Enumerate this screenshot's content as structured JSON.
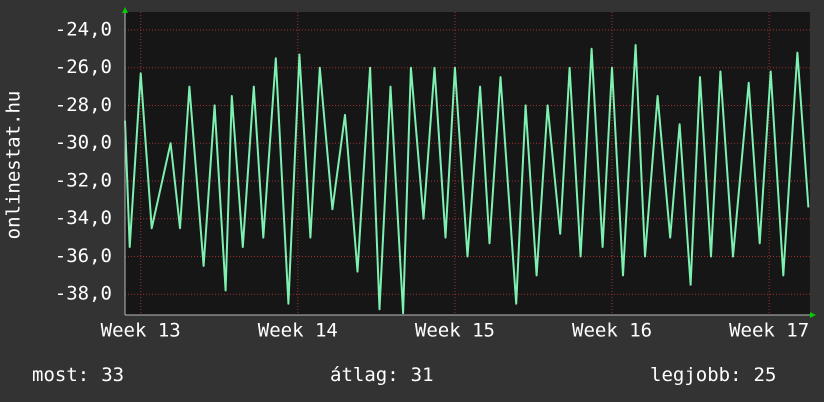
{
  "chart_data": {
    "type": "line",
    "ylabel": "onlinestat.hu",
    "x": [
      12.9,
      12.93,
      13.0,
      13.07,
      13.19,
      13.25,
      13.31,
      13.4,
      13.47,
      13.54,
      13.58,
      13.65,
      13.72,
      13.78,
      13.86,
      13.94,
      14.01,
      14.08,
      14.14,
      14.22,
      14.3,
      14.38,
      14.46,
      14.52,
      14.59,
      14.67,
      14.72,
      14.8,
      14.87,
      14.94,
      15.0,
      15.08,
      15.16,
      15.22,
      15.29,
      15.39,
      15.45,
      15.52,
      15.59,
      15.67,
      15.73,
      15.8,
      15.87,
      15.94,
      16.0,
      16.07,
      16.15,
      16.21,
      16.29,
      16.37,
      16.43,
      16.5,
      16.56,
      16.63,
      16.69,
      16.77,
      16.87,
      16.94,
      17.01,
      17.09,
      17.18,
      17.25
    ],
    "series": [
      {
        "color": "#7ef0b0",
        "values": [
          -28.8,
          -35.5,
          -26.3,
          -34.5,
          -30.0,
          -34.5,
          -27.0,
          -36.5,
          -28.0,
          -37.8,
          -27.5,
          -35.5,
          -27.0,
          -35.0,
          -25.5,
          -38.5,
          -25.3,
          -35.0,
          -26.0,
          -33.5,
          -28.5,
          -36.8,
          -26.0,
          -38.8,
          -27.0,
          -39.0,
          -26.0,
          -34.0,
          -26.0,
          -35.0,
          -26.0,
          -36.0,
          -27.0,
          -35.3,
          -26.5,
          -38.5,
          -28.0,
          -37.0,
          -28.0,
          -34.8,
          -26.0,
          -36.0,
          -25.0,
          -35.5,
          -26.0,
          -37.0,
          -24.8,
          -36.0,
          -27.5,
          -35.0,
          -29.0,
          -37.5,
          -26.5,
          -36.0,
          -26.2,
          -36.0,
          -26.8,
          -35.3,
          -26.2,
          -37.0,
          -25.2,
          -33.4
        ]
      }
    ],
    "xlim": [
      12.9,
      17.26
    ],
    "xticks": [
      {
        "value": 13,
        "label": "Week 13"
      },
      {
        "value": 14,
        "label": "Week 14"
      },
      {
        "value": 15,
        "label": "Week 15"
      },
      {
        "value": 16,
        "label": "Week 16"
      },
      {
        "value": 17,
        "label": "Week 17"
      }
    ],
    "ylim": [
      -39.1,
      -23.05
    ],
    "yticks": [
      {
        "value": -24,
        "label": "-24,0"
      },
      {
        "value": -26,
        "label": "-26,0"
      },
      {
        "value": -28,
        "label": "-28,0"
      },
      {
        "value": -30,
        "label": "-30,0"
      },
      {
        "value": -32,
        "label": "-32,0"
      },
      {
        "value": -34,
        "label": "-34,0"
      },
      {
        "value": -36,
        "label": "-36,0"
      },
      {
        "value": -38,
        "label": "-38,0"
      }
    ],
    "grid": true,
    "stats": [
      {
        "label": "most:",
        "value": 33
      },
      {
        "label": "átlag:",
        "value": 31
      },
      {
        "label": "legjobb:",
        "value": 25
      }
    ]
  }
}
